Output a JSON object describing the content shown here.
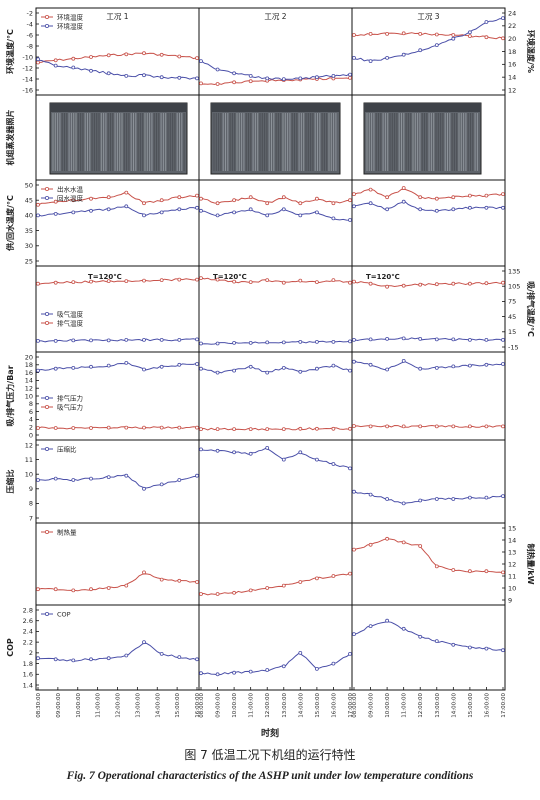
{
  "figure": {
    "caption_cn": "图 7 低温工况下机组的运行特性",
    "caption_en": "Fig. 7 Operational characteristics of the ASHP unit under low temperature conditions",
    "xlabel": "时刻",
    "conditions": [
      "工况 1",
      "工况 2",
      "工况 3"
    ],
    "time_ticks": [
      [
        "08:30:00",
        "09:00:00",
        "10:00:00",
        "11:00:00",
        "12:00:00",
        "13:00:00",
        "14:00:00",
        "15:00:00",
        "16:00:00"
      ],
      [
        "08:00:00",
        "09:00:00",
        "10:00:00",
        "11:00:00",
        "12:00:00",
        "13:00:00",
        "14:00:00",
        "15:00:00",
        "16:00:00",
        "17:00:00"
      ],
      [
        "08:00:00",
        "09:00:00",
        "10:00:00",
        "11:00:00",
        "12:00:00",
        "13:00:00",
        "14:00:00",
        "15:00:00",
        "16:00:00",
        "17:00:00"
      ]
    ],
    "photo_label": "机组蒸发器照片",
    "colors": {
      "red": "#c8524a",
      "blue": "#4a4fa8",
      "axis": "#111111"
    }
  },
  "chart_data": [
    {
      "id": "ambient",
      "type": "line",
      "ylabel": "环境温度/°C",
      "ylabel2": "环境湿度/%",
      "ylim": [
        -16,
        -2
      ],
      "yticks": [
        -16,
        -14,
        -12,
        -10,
        -8,
        -6,
        -4,
        -2
      ],
      "ylim2": [
        12,
        24
      ],
      "yticks2": [
        12,
        14,
        16,
        18,
        20,
        22,
        24
      ],
      "legend": [
        "环境温度",
        "环境湿度"
      ],
      "series": [
        {
          "name": "环境温度",
          "color": "red",
          "axis": "left",
          "segments": [
            [
              -11.0,
              -10.6,
              -10.3,
              -10.0,
              -9.7,
              -9.5,
              -9.3,
              -9.6,
              -9.9,
              -10.2
            ],
            [
              -14.8,
              -14.9,
              -14.6,
              -14.4,
              -14.3,
              -14.2,
              -14.1,
              -14.0,
              -13.9,
              -13.8
            ],
            [
              -6.0,
              -5.8,
              -5.8,
              -5.7,
              -5.8,
              -5.9,
              -6.0,
              -6.2,
              -6.4,
              -6.6
            ]
          ]
        },
        {
          "name": "环境湿度",
          "color": "blue",
          "axis": "right",
          "segments": [
            [
              16.8,
              15.8,
              15.5,
              15.0,
              14.6,
              14.2,
              14.3,
              14.0,
              13.9,
              13.8
            ],
            [
              16.5,
              15.2,
              14.6,
              14.2,
              13.8,
              13.7,
              13.8,
              14.0,
              14.2,
              14.4
            ],
            [
              17.0,
              16.5,
              17.0,
              17.5,
              18.2,
              19.0,
              20.0,
              21.0,
              22.6,
              23.2
            ]
          ]
        }
      ]
    },
    {
      "id": "water",
      "type": "line",
      "ylabel": "供/回水温度/°C",
      "ylim": [
        25,
        50
      ],
      "yticks": [
        25,
        30,
        35,
        40,
        45,
        50
      ],
      "legend": [
        "出水水温",
        "回水温度"
      ],
      "series": [
        {
          "name": "出水水温",
          "color": "red",
          "segments": [
            [
              43.5,
              44.5,
              45.0,
              45.5,
              46.0,
              47.5,
              44.0,
              45.0,
              46.0,
              46.5
            ],
            [
              45.5,
              44.0,
              45.0,
              46.0,
              44.0,
              46.0,
              44.0,
              45.5,
              44.0,
              45.0
            ],
            [
              47.0,
              48.5,
              46.0,
              49.0,
              46.0,
              45.5,
              46.0,
              46.5,
              46.5,
              47.0
            ]
          ]
        },
        {
          "name": "回水温度",
          "color": "blue",
          "segments": [
            [
              40.0,
              40.5,
              41.0,
              41.5,
              42.0,
              43.0,
              40.0,
              41.0,
              42.0,
              42.5
            ],
            [
              41.5,
              40.0,
              41.0,
              42.0,
              40.0,
              42.0,
              40.0,
              41.0,
              39.0,
              38.5
            ],
            [
              43.0,
              44.0,
              42.0,
              44.5,
              42.0,
              41.5,
              42.0,
              42.5,
              42.5,
              42.5
            ]
          ]
        }
      ]
    },
    {
      "id": "suction",
      "type": "line",
      "ylabel2": "吸/排气温度/°C",
      "ylim2": [
        -15,
        135
      ],
      "yticks2": [
        -15,
        15,
        45,
        75,
        105,
        135
      ],
      "annotation": "T=120℃",
      "legend": [
        "吸气温度",
        "排气温度"
      ],
      "series": [
        {
          "name": "排气温度",
          "color": "red",
          "axis": "right",
          "segments": [
            [
              110,
              112,
              113,
              114,
              115,
              115,
              116,
              117,
              118,
              118
            ],
            [
              121,
              118,
              114,
              113,
              117,
              112,
              116,
              113,
              117,
              112
            ],
            [
              114,
              110,
              104,
              106,
              108,
              109,
              110,
              110,
              111,
              112
            ]
          ]
        },
        {
          "name": "吸气温度",
          "color": "blue",
          "axis": "right",
          "segments": [
            [
              -3,
              -3,
              -2,
              -2,
              -2,
              -1,
              -1,
              -1,
              -1,
              0
            ],
            [
              -8,
              -8,
              -7,
              -7,
              -6,
              -6,
              -5,
              -5,
              -5,
              -4
            ],
            [
              -1,
              0,
              1,
              2,
              1,
              0,
              0,
              -1,
              -1,
              -1
            ]
          ]
        }
      ]
    },
    {
      "id": "pressure",
      "type": "line",
      "ylabel": "吸/排气压力/Bar",
      "ylim": [
        0,
        20
      ],
      "yticks": [
        0,
        2,
        4,
        6,
        8,
        10,
        12,
        14,
        16,
        18,
        20
      ],
      "legend": [
        "排气压力",
        "吸气压力"
      ],
      "series": [
        {
          "name": "排气压力",
          "color": "blue",
          "segments": [
            [
              16.5,
              17.0,
              17.2,
              17.5,
              17.8,
              18.5,
              16.8,
              17.5,
              18.0,
              18.2
            ],
            [
              17.0,
              16.0,
              16.5,
              17.5,
              16.0,
              17.2,
              16.2,
              17.0,
              17.8,
              16.5
            ],
            [
              18.8,
              18.0,
              16.8,
              19.0,
              17.0,
              17.2,
              17.6,
              17.8,
              18.0,
              18.2
            ]
          ]
        },
        {
          "name": "吸气压力",
          "color": "red",
          "segments": [
            [
              1.8,
              1.8,
              1.8,
              1.8,
              1.9,
              1.9,
              1.9,
              1.9,
              1.9,
              1.9
            ],
            [
              1.5,
              1.5,
              1.5,
              1.5,
              1.5,
              1.5,
              1.6,
              1.6,
              1.6,
              1.6
            ],
            [
              2.3,
              2.2,
              2.2,
              2.2,
              2.2,
              2.2,
              2.2,
              2.2,
              2.2,
              2.2
            ]
          ]
        }
      ]
    },
    {
      "id": "ratio",
      "type": "line",
      "ylabel": "压缩比",
      "ylim": [
        7,
        12
      ],
      "yticks": [
        7,
        8,
        9,
        10,
        11,
        12
      ],
      "legend": [
        "压缩比"
      ],
      "series": [
        {
          "name": "压缩比",
          "color": "blue",
          "segments": [
            [
              9.6,
              9.7,
              9.6,
              9.7,
              9.8,
              9.9,
              9.0,
              9.3,
              9.6,
              9.9
            ],
            [
              11.7,
              11.6,
              11.5,
              11.4,
              11.8,
              11.0,
              11.5,
              11.0,
              10.7,
              10.4
            ],
            [
              8.8,
              8.6,
              8.3,
              8.0,
              8.2,
              8.3,
              8.3,
              8.4,
              8.4,
              8.5
            ]
          ]
        }
      ]
    },
    {
      "id": "heat",
      "type": "line",
      "ylabel2": "制热量/kW",
      "ylim2": [
        9,
        15
      ],
      "yticks2": [
        9,
        10,
        11,
        12,
        13,
        14,
        15
      ],
      "legend": [
        "制热量"
      ],
      "series": [
        {
          "name": "制热量",
          "color": "red",
          "axis": "right",
          "segments": [
            [
              9.9,
              9.9,
              9.8,
              9.9,
              10.0,
              10.2,
              11.3,
              10.7,
              10.6,
              10.5
            ],
            [
              9.5,
              9.5,
              9.6,
              9.8,
              10.0,
              10.2,
              10.5,
              10.8,
              11.0,
              11.2
            ],
            [
              13.2,
              13.6,
              14.1,
              13.8,
              13.5,
              11.8,
              11.5,
              11.4,
              11.4,
              11.3
            ]
          ]
        }
      ]
    },
    {
      "id": "cop",
      "type": "line",
      "ylabel": "COP",
      "ylim": [
        1.4,
        2.8
      ],
      "yticks": [
        1.4,
        1.6,
        1.8,
        2.0,
        2.2,
        2.4,
        2.6,
        2.8
      ],
      "legend": [
        "COP"
      ],
      "series": [
        {
          "name": "COP",
          "color": "blue",
          "segments": [
            [
              1.9,
              1.88,
              1.86,
              1.88,
              1.9,
              1.95,
              2.2,
              1.98,
              1.92,
              1.88
            ],
            [
              1.62,
              1.6,
              1.63,
              1.65,
              1.68,
              1.75,
              2.0,
              1.7,
              1.8,
              1.98
            ],
            [
              2.35,
              2.5,
              2.6,
              2.45,
              2.3,
              2.22,
              2.15,
              2.1,
              2.08,
              2.05
            ]
          ]
        }
      ]
    }
  ]
}
